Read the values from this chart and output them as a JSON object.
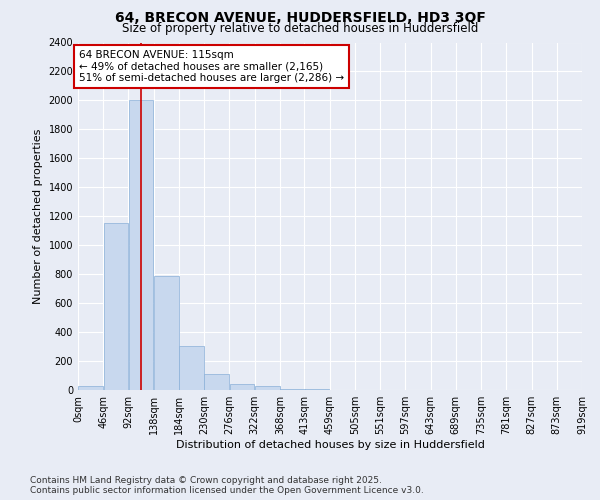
{
  "title_line1": "64, BRECON AVENUE, HUDDERSFIELD, HD3 3QF",
  "title_line2": "Size of property relative to detached houses in Huddersfield",
  "xlabel": "Distribution of detached houses by size in Huddersfield",
  "ylabel": "Number of detached properties",
  "bar_color": "#c8d8ee",
  "bar_edge_color": "#8ab0d8",
  "background_color": "#e8ecf5",
  "grid_color": "#ffffff",
  "bins": [
    0,
    46,
    92,
    138,
    184,
    230,
    276,
    322,
    368,
    413,
    459,
    505,
    551,
    597,
    643,
    689,
    735,
    781,
    827,
    873,
    919
  ],
  "bin_labels": [
    "0sqm",
    "46sqm",
    "92sqm",
    "138sqm",
    "184sqm",
    "230sqm",
    "276sqm",
    "322sqm",
    "368sqm",
    "413sqm",
    "459sqm",
    "505sqm",
    "551sqm",
    "597sqm",
    "643sqm",
    "689sqm",
    "735sqm",
    "781sqm",
    "827sqm",
    "873sqm",
    "919sqm"
  ],
  "counts": [
    30,
    1150,
    2000,
    790,
    305,
    110,
    40,
    25,
    10,
    5,
    2,
    1,
    0,
    0,
    0,
    0,
    0,
    0,
    0,
    0
  ],
  "property_size": 115,
  "red_line_color": "#cc0000",
  "annotation_line1": "64 BRECON AVENUE: 115sqm",
  "annotation_line2": "← 49% of detached houses are smaller (2,165)",
  "annotation_line3": "51% of semi-detached houses are larger (2,286) →",
  "annotation_box_color": "#ffffff",
  "annotation_border_color": "#cc0000",
  "ylim": [
    0,
    2400
  ],
  "yticks": [
    0,
    200,
    400,
    600,
    800,
    1000,
    1200,
    1400,
    1600,
    1800,
    2000,
    2200,
    2400
  ],
  "footnote": "Contains HM Land Registry data © Crown copyright and database right 2025.\nContains public sector information licensed under the Open Government Licence v3.0.",
  "title_fontsize": 10,
  "subtitle_fontsize": 8.5,
  "xlabel_fontsize": 8,
  "ylabel_fontsize": 8,
  "tick_fontsize": 7,
  "annotation_fontsize": 7.5,
  "footnote_fontsize": 6.5
}
